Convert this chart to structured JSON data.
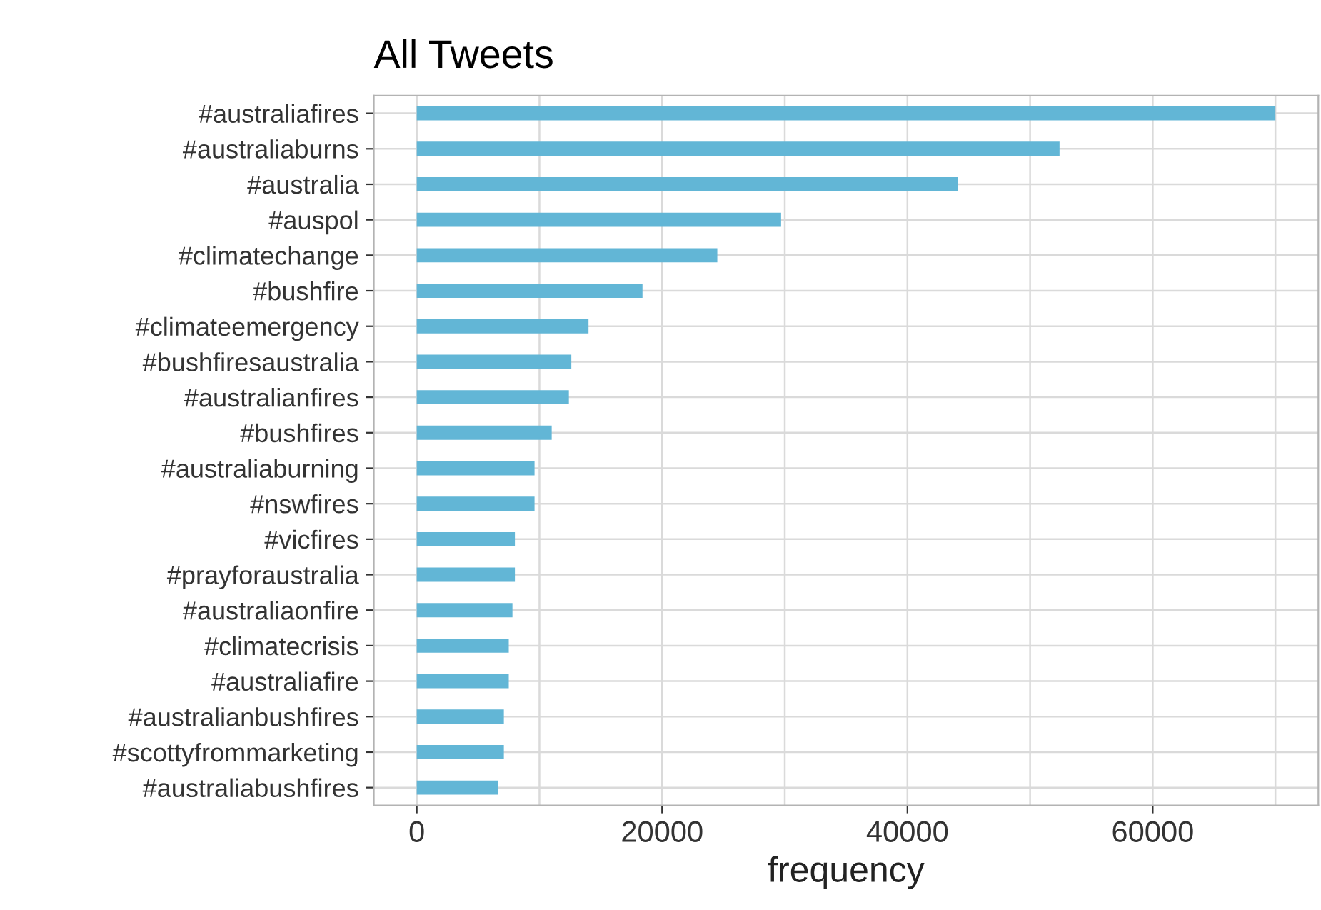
{
  "chart_data": {
    "type": "bar",
    "title": "All Tweets",
    "xlabel": "frequency",
    "orientation": "horizontal",
    "categories": [
      "#australiafires",
      "#australiaburns",
      "#australia",
      "#auspol",
      "#climatechange",
      "#bushfire",
      "#climateemergency",
      "#bushfiresaustralia",
      "#australianfires",
      "#bushfires",
      "#australiaburning",
      "#nswfires",
      "#vicfires",
      "#prayforaustralia",
      "#australiaonfire",
      "#climatecrisis",
      "#australiafire",
      "#australianbushfires",
      "#scottyfrommarketing",
      "#australiabushfires"
    ],
    "values": [
      70000,
      52400,
      44100,
      29700,
      24500,
      18400,
      14000,
      12600,
      12400,
      11000,
      9600,
      9600,
      8000,
      8000,
      7800,
      7500,
      7500,
      7100,
      7100,
      6600
    ],
    "color": "#62b6d6",
    "xlim": [
      -3500,
      73500
    ],
    "xticks": [
      0,
      {
        "value": 10000,
        "label": null
      },
      20000,
      {
        "value": 30000,
        "label": null
      },
      40000,
      {
        "value": 50000,
        "label": null
      },
      60000,
      {
        "value": 70000,
        "label": null
      }
    ],
    "grid": true
  }
}
